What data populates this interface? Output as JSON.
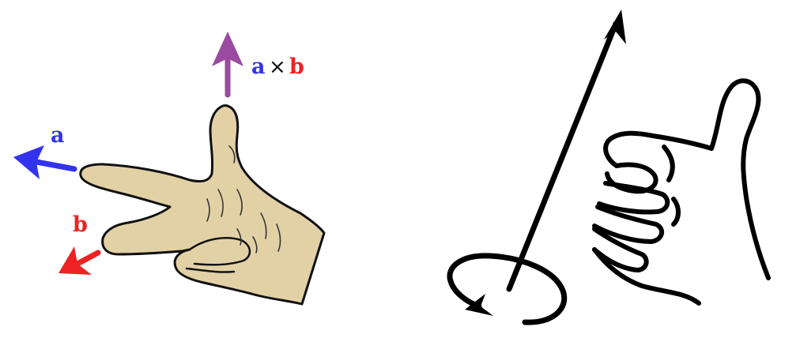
{
  "left_figure": {
    "labels": {
      "a": "a",
      "b": "b",
      "cross_a": "a",
      "cross_times": "×",
      "cross_b": "b"
    },
    "colors": {
      "a": "#3333ee",
      "b": "#ee2222",
      "cross": "#9a4aa0",
      "skin": "#e3d1a6",
      "outline": "#111111"
    }
  },
  "right_figure": {
    "colors": {
      "stroke": "#000000"
    }
  }
}
